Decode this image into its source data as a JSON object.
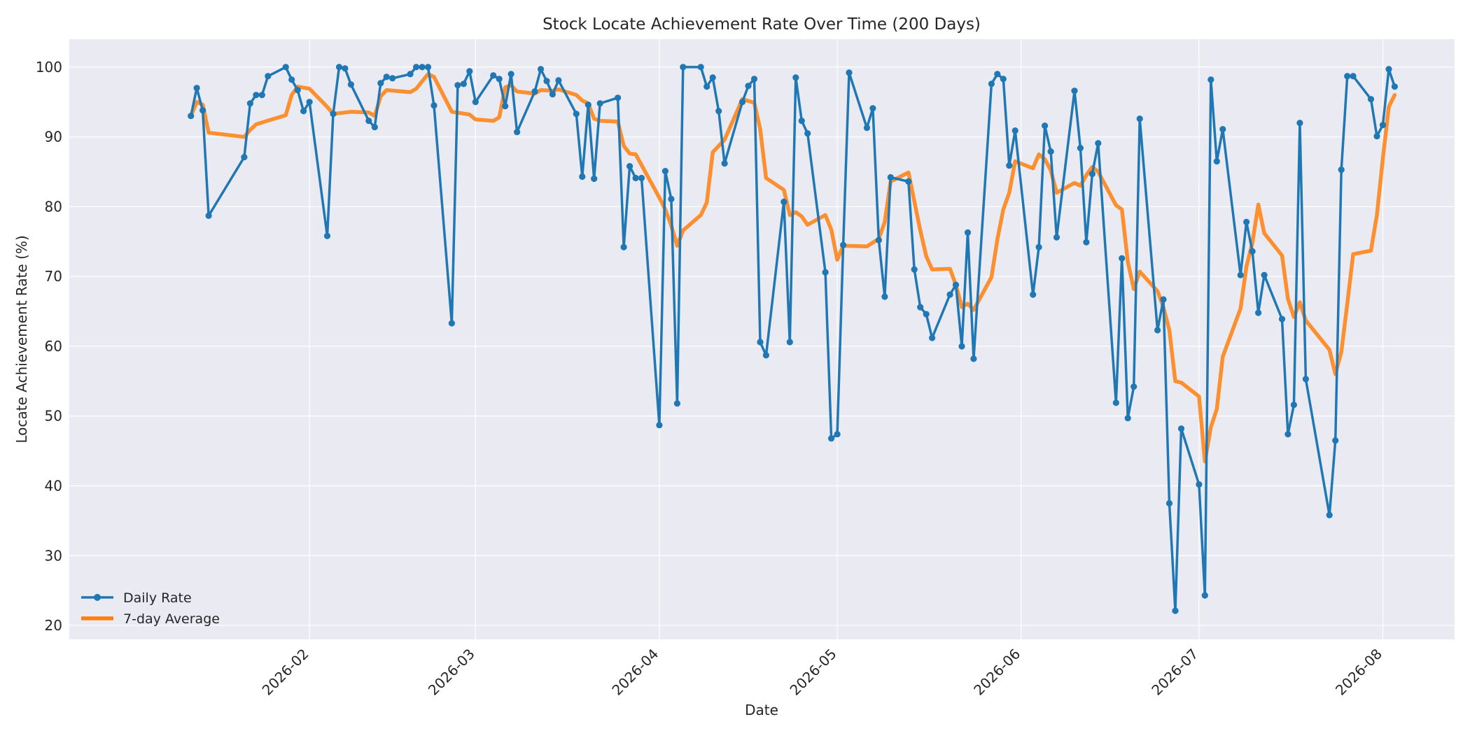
{
  "chart_data": {
    "type": "line",
    "title": "Stock Locate Achievement Rate Over Time (200 Days)",
    "xlabel": "Date",
    "ylabel": "Locate Achievement Rate (%)",
    "xlim": [
      "2026-01-02",
      "2026-08-03"
    ],
    "ylim": [
      18,
      104
    ],
    "x_ticks": [
      "2026-02",
      "2026-03",
      "2026-04",
      "2026-05",
      "2026-06",
      "2026-07",
      "2026-08"
    ],
    "y_ticks": [
      20,
      30,
      40,
      50,
      60,
      70,
      80,
      90,
      100
    ],
    "grid": true,
    "legend_position": "bottom-left",
    "series": [
      {
        "name": "Daily Rate",
        "color": "#1f77b4",
        "marker": "circle",
        "points": [
          [
            "2026-01-12",
            93.0
          ],
          [
            "2026-01-13",
            97.0
          ],
          [
            "2026-01-14",
            93.8
          ],
          [
            "2026-01-15",
            78.7
          ],
          [
            "2026-01-21",
            87.1
          ],
          [
            "2026-01-22",
            94.8
          ],
          [
            "2026-01-23",
            96.0
          ],
          [
            "2026-01-24",
            96.0
          ],
          [
            "2026-01-25",
            98.7
          ],
          [
            "2026-01-28",
            100.0
          ],
          [
            "2026-01-29",
            98.2
          ],
          [
            "2026-01-30",
            96.7
          ],
          [
            "2026-01-31",
            93.7
          ],
          [
            "2026-02-01",
            95.0
          ],
          [
            "2026-02-04",
            75.8
          ],
          [
            "2026-02-05",
            93.3
          ],
          [
            "2026-02-06",
            100.0
          ],
          [
            "2026-02-07",
            99.8
          ],
          [
            "2026-02-08",
            97.5
          ],
          [
            "2026-02-11",
            92.3
          ],
          [
            "2026-02-12",
            91.4
          ],
          [
            "2026-02-13",
            97.7
          ],
          [
            "2026-02-14",
            98.6
          ],
          [
            "2026-02-15",
            98.4
          ],
          [
            "2026-02-18",
            99.0
          ],
          [
            "2026-02-19",
            100.0
          ],
          [
            "2026-02-20",
            100.0
          ],
          [
            "2026-02-21",
            100.0
          ],
          [
            "2026-02-22",
            94.5
          ],
          [
            "2026-02-25",
            63.3
          ],
          [
            "2026-02-26",
            97.4
          ],
          [
            "2026-02-27",
            97.6
          ],
          [
            "2026-02-28",
            99.4
          ],
          [
            "2026-03-01",
            95.0
          ],
          [
            "2026-03-04",
            98.8
          ],
          [
            "2026-03-05",
            98.3
          ],
          [
            "2026-03-06",
            94.4
          ],
          [
            "2026-03-07",
            99.0
          ],
          [
            "2026-03-08",
            90.7
          ],
          [
            "2026-03-11",
            96.5
          ],
          [
            "2026-03-12",
            99.7
          ],
          [
            "2026-03-13",
            98.0
          ],
          [
            "2026-03-14",
            96.1
          ],
          [
            "2026-03-15",
            98.1
          ],
          [
            "2026-03-18",
            93.3
          ],
          [
            "2026-03-19",
            84.3
          ],
          [
            "2026-03-20",
            94.6
          ],
          [
            "2026-03-21",
            84.0
          ],
          [
            "2026-03-22",
            94.8
          ],
          [
            "2026-03-25",
            95.6
          ],
          [
            "2026-03-26",
            74.2
          ],
          [
            "2026-03-27",
            85.8
          ],
          [
            "2026-03-28",
            84.1
          ],
          [
            "2026-03-29",
            84.1
          ],
          [
            "2026-04-01",
            48.7
          ],
          [
            "2026-04-02",
            85.1
          ],
          [
            "2026-04-03",
            81.1
          ],
          [
            "2026-04-04",
            51.8
          ],
          [
            "2026-04-05",
            100.0
          ],
          [
            "2026-04-08",
            100.0
          ],
          [
            "2026-04-09",
            97.2
          ],
          [
            "2026-04-10",
            98.5
          ],
          [
            "2026-04-11",
            93.7
          ],
          [
            "2026-04-12",
            86.2
          ],
          [
            "2026-04-15",
            95.0
          ],
          [
            "2026-04-16",
            97.3
          ],
          [
            "2026-04-17",
            98.3
          ],
          [
            "2026-04-18",
            60.6
          ],
          [
            "2026-04-19",
            58.7
          ],
          [
            "2026-04-22",
            80.7
          ],
          [
            "2026-04-23",
            60.6
          ],
          [
            "2026-04-24",
            98.5
          ],
          [
            "2026-04-25",
            92.3
          ],
          [
            "2026-04-26",
            90.5
          ],
          [
            "2026-04-29",
            70.6
          ],
          [
            "2026-04-30",
            46.8
          ],
          [
            "2026-05-01",
            47.4
          ],
          [
            "2026-05-02",
            74.5
          ],
          [
            "2026-05-03",
            99.2
          ],
          [
            "2026-05-06",
            91.3
          ],
          [
            "2026-05-07",
            94.1
          ],
          [
            "2026-05-08",
            75.2
          ],
          [
            "2026-05-09",
            67.1
          ],
          [
            "2026-05-10",
            84.2
          ],
          [
            "2026-05-13",
            83.6
          ],
          [
            "2026-05-14",
            71.0
          ],
          [
            "2026-05-15",
            65.6
          ],
          [
            "2026-05-16",
            64.6
          ],
          [
            "2026-05-17",
            61.2
          ],
          [
            "2026-05-20",
            67.4
          ],
          [
            "2026-05-21",
            68.8
          ],
          [
            "2026-05-22",
            60.0
          ],
          [
            "2026-05-23",
            76.3
          ],
          [
            "2026-05-24",
            58.2
          ],
          [
            "2026-05-27",
            97.6
          ],
          [
            "2026-05-28",
            99.0
          ],
          [
            "2026-05-29",
            98.3
          ],
          [
            "2026-05-30",
            85.9
          ],
          [
            "2026-05-31",
            90.9
          ],
          [
            "2026-06-03",
            67.4
          ],
          [
            "2026-06-04",
            74.2
          ],
          [
            "2026-06-05",
            91.6
          ],
          [
            "2026-06-06",
            87.9
          ],
          [
            "2026-06-07",
            75.6
          ],
          [
            "2026-06-10",
            96.6
          ],
          [
            "2026-06-11",
            88.4
          ],
          [
            "2026-06-12",
            74.9
          ],
          [
            "2026-06-13",
            84.7
          ],
          [
            "2026-06-14",
            89.1
          ],
          [
            "2026-06-17",
            51.9
          ],
          [
            "2026-06-18",
            72.6
          ],
          [
            "2026-06-19",
            49.7
          ],
          [
            "2026-06-20",
            54.2
          ],
          [
            "2026-06-21",
            92.6
          ],
          [
            "2026-06-24",
            62.3
          ],
          [
            "2026-06-25",
            66.7
          ],
          [
            "2026-06-26",
            37.5
          ],
          [
            "2026-06-27",
            22.1
          ],
          [
            "2026-06-28",
            48.2
          ],
          [
            "2026-07-01",
            40.2
          ],
          [
            "2026-07-02",
            24.3
          ],
          [
            "2026-07-03",
            98.2
          ],
          [
            "2026-07-04",
            86.5
          ],
          [
            "2026-07-05",
            91.1
          ],
          [
            "2026-07-08",
            70.2
          ],
          [
            "2026-07-09",
            77.8
          ],
          [
            "2026-07-10",
            73.6
          ],
          [
            "2026-07-11",
            64.8
          ],
          [
            "2026-07-12",
            70.2
          ],
          [
            "2026-07-15",
            63.9
          ],
          [
            "2026-07-16",
            47.4
          ],
          [
            "2026-07-17",
            51.6
          ],
          [
            "2026-07-18",
            92.0
          ],
          [
            "2026-07-19",
            55.3
          ],
          [
            "2026-07-23",
            35.8
          ],
          [
            "2026-07-24",
            46.5
          ],
          [
            "2026-07-25",
            85.3
          ],
          [
            "2026-07-26",
            98.7
          ],
          [
            "2026-07-27",
            98.7
          ],
          [
            "2026-07-30",
            95.4
          ],
          [
            "2026-07-31",
            90.1
          ],
          [
            "2026-08-01",
            91.7
          ],
          [
            "2026-08-02",
            99.7
          ],
          [
            "2026-08-03",
            97.2
          ]
        ]
      },
      {
        "name": "7-day Average",
        "color": "#ff7f0e",
        "marker": "none",
        "points": [
          [
            "2026-01-12",
            93.0
          ],
          [
            "2026-01-13",
            95.0
          ],
          [
            "2026-01-14",
            94.6
          ],
          [
            "2026-01-15",
            90.6
          ],
          [
            "2026-01-21",
            90.0
          ],
          [
            "2026-01-22",
            91.0
          ],
          [
            "2026-01-23",
            91.8
          ],
          [
            "2026-01-28",
            93.1
          ],
          [
            "2026-01-29",
            96.0
          ],
          [
            "2026-01-30",
            97.2
          ],
          [
            "2026-02-01",
            96.9
          ],
          [
            "2026-02-04",
            94.3
          ],
          [
            "2026-02-05",
            93.3
          ],
          [
            "2026-02-08",
            93.6
          ],
          [
            "2026-02-11",
            93.5
          ],
          [
            "2026-02-12",
            93.0
          ],
          [
            "2026-02-13",
            95.8
          ],
          [
            "2026-02-14",
            96.7
          ],
          [
            "2026-02-18",
            96.4
          ],
          [
            "2026-02-19",
            96.9
          ],
          [
            "2026-02-21",
            99.0
          ],
          [
            "2026-02-22",
            98.6
          ],
          [
            "2026-02-25",
            93.6
          ],
          [
            "2026-02-28",
            93.2
          ],
          [
            "2026-03-01",
            92.5
          ],
          [
            "2026-03-04",
            92.3
          ],
          [
            "2026-03-05",
            92.8
          ],
          [
            "2026-03-06",
            97.1
          ],
          [
            "2026-03-07",
            97.4
          ],
          [
            "2026-03-08",
            96.5
          ],
          [
            "2026-03-11",
            96.2
          ],
          [
            "2026-03-12",
            96.7
          ],
          [
            "2026-03-14",
            96.6
          ],
          [
            "2026-03-15",
            96.8
          ],
          [
            "2026-03-18",
            96.0
          ],
          [
            "2026-03-19",
            95.2
          ],
          [
            "2026-03-20",
            94.8
          ],
          [
            "2026-03-21",
            92.6
          ],
          [
            "2026-03-22",
            92.3
          ],
          [
            "2026-03-25",
            92.2
          ],
          [
            "2026-03-26",
            88.7
          ],
          [
            "2026-03-27",
            87.6
          ],
          [
            "2026-03-28",
            87.5
          ],
          [
            "2026-04-01",
            81.3
          ],
          [
            "2026-04-02",
            79.6
          ],
          [
            "2026-04-03",
            77.3
          ],
          [
            "2026-04-04",
            74.4
          ],
          [
            "2026-04-05",
            76.6
          ],
          [
            "2026-04-08",
            78.8
          ],
          [
            "2026-04-09",
            80.6
          ],
          [
            "2026-04-10",
            87.8
          ],
          [
            "2026-04-12",
            89.6
          ],
          [
            "2026-04-15",
            95.4
          ],
          [
            "2026-04-17",
            94.9
          ],
          [
            "2026-04-18",
            91.1
          ],
          [
            "2026-04-19",
            84.1
          ],
          [
            "2026-04-22",
            82.4
          ],
          [
            "2026-04-23",
            78.8
          ],
          [
            "2026-04-24",
            79.2
          ],
          [
            "2026-04-25",
            78.6
          ],
          [
            "2026-04-26",
            77.4
          ],
          [
            "2026-04-29",
            78.8
          ],
          [
            "2026-04-30",
            76.7
          ],
          [
            "2026-05-01",
            72.4
          ],
          [
            "2026-05-02",
            74.4
          ],
          [
            "2026-05-06",
            74.3
          ],
          [
            "2026-05-08",
            75.4
          ],
          [
            "2026-05-09",
            77.8
          ],
          [
            "2026-05-10",
            83.6
          ],
          [
            "2026-05-13",
            84.9
          ],
          [
            "2026-05-15",
            76.6
          ],
          [
            "2026-05-16",
            72.9
          ],
          [
            "2026-05-17",
            71.0
          ],
          [
            "2026-05-20",
            71.1
          ],
          [
            "2026-05-21",
            68.8
          ],
          [
            "2026-05-22",
            65.6
          ],
          [
            "2026-05-23",
            66.1
          ],
          [
            "2026-05-24",
            65.2
          ],
          [
            "2026-05-27",
            69.9
          ],
          [
            "2026-05-28",
            75.3
          ],
          [
            "2026-05-29",
            79.6
          ],
          [
            "2026-05-30",
            82.0
          ],
          [
            "2026-05-31",
            86.5
          ],
          [
            "2026-06-03",
            85.5
          ],
          [
            "2026-06-04",
            87.5
          ],
          [
            "2026-06-05",
            86.8
          ],
          [
            "2026-06-06",
            85.2
          ],
          [
            "2026-06-07",
            82.0
          ],
          [
            "2026-06-10",
            83.4
          ],
          [
            "2026-06-11",
            83.0
          ],
          [
            "2026-06-12",
            84.5
          ],
          [
            "2026-06-13",
            85.7
          ],
          [
            "2026-06-14",
            85.0
          ],
          [
            "2026-06-17",
            80.2
          ],
          [
            "2026-06-18",
            79.6
          ],
          [
            "2026-06-19",
            72.1
          ],
          [
            "2026-06-20",
            68.2
          ],
          [
            "2026-06-21",
            70.7
          ],
          [
            "2026-06-24",
            67.9
          ],
          [
            "2026-06-25",
            65.6
          ],
          [
            "2026-06-26",
            62.3
          ],
          [
            "2026-06-27",
            55.0
          ],
          [
            "2026-06-28",
            54.8
          ],
          [
            "2026-07-01",
            52.8
          ],
          [
            "2026-07-02",
            43.5
          ],
          [
            "2026-07-03",
            48.4
          ],
          [
            "2026-07-04",
            51.0
          ],
          [
            "2026-07-05",
            58.5
          ],
          [
            "2026-07-08",
            65.4
          ],
          [
            "2026-07-09",
            71.4
          ],
          [
            "2026-07-10",
            74.8
          ],
          [
            "2026-07-11",
            80.3
          ],
          [
            "2026-07-12",
            76.2
          ],
          [
            "2026-07-15",
            73.0
          ],
          [
            "2026-07-16",
            66.8
          ],
          [
            "2026-07-17",
            64.2
          ],
          [
            "2026-07-18",
            66.3
          ],
          [
            "2026-07-19",
            63.7
          ],
          [
            "2026-07-23",
            59.5
          ],
          [
            "2026-07-24",
            56.0
          ],
          [
            "2026-07-25",
            59.2
          ],
          [
            "2026-07-26",
            66.1
          ],
          [
            "2026-07-27",
            73.2
          ],
          [
            "2026-07-30",
            73.7
          ],
          [
            "2026-07-31",
            78.8
          ],
          [
            "2026-08-01",
            86.9
          ],
          [
            "2026-08-02",
            94.3
          ],
          [
            "2026-08-03",
            96.0
          ]
        ]
      }
    ]
  }
}
